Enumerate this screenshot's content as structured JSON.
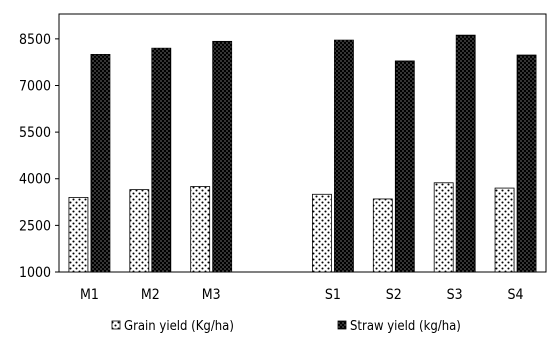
{
  "chart_data": {
    "type": "bar",
    "title": "",
    "xlabel": "",
    "ylabel": "",
    "ylim": [
      1000,
      9300
    ],
    "yticks": [
      1000,
      2500,
      4000,
      5500,
      7000,
      8500
    ],
    "categories": [
      "M1",
      "M2",
      "M3",
      "",
      "S1",
      "S2",
      "S3",
      "S4"
    ],
    "series": [
      {
        "name": "Grain yield (Kg/ha)",
        "values": [
          3400,
          3650,
          3750,
          null,
          3500,
          3350,
          3870,
          3700
        ],
        "pattern": "light-dots"
      },
      {
        "name": "Straw yield (kg/ha)",
        "values": [
          8000,
          8200,
          8420,
          null,
          8460,
          7790,
          8620,
          7980
        ],
        "pattern": "dark-dots"
      }
    ],
    "legend_position": "bottom",
    "grid": false
  }
}
